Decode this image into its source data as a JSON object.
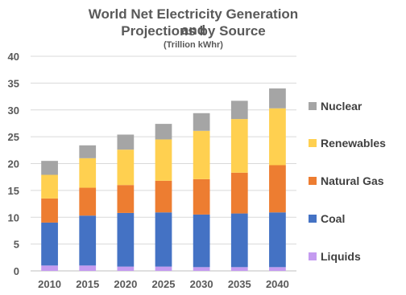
{
  "chart_data": {
    "type": "bar",
    "stacked": true,
    "title": "World Net Electricity Generation and Projections by Source",
    "subtitle": "(Trillion kWhr)",
    "title_lines": [
      "World Net Electricity Generation and",
      "Projections by Source"
    ],
    "categories": [
      "2010",
      "2015",
      "2020",
      "2025",
      "2030",
      "2035",
      "2040"
    ],
    "ylim": [
      0,
      40
    ],
    "yticks": [
      0,
      5,
      10,
      15,
      20,
      25,
      30,
      35,
      40
    ],
    "grid": true,
    "legend_position": "right",
    "series": [
      {
        "name": "Liquids",
        "color": "#C49BF0",
        "values": [
          1.0,
          1.0,
          0.8,
          0.8,
          0.7,
          0.7,
          0.7
        ]
      },
      {
        "name": "Coal",
        "color": "#4472C4",
        "values": [
          8.0,
          9.3,
          10.0,
          10.1,
          9.8,
          10.0,
          10.2
        ]
      },
      {
        "name": "Natural Gas",
        "color": "#ED7D31",
        "values": [
          4.5,
          5.2,
          5.2,
          5.9,
          6.6,
          7.6,
          8.8
        ]
      },
      {
        "name": "Renewables",
        "color": "#FFD050",
        "values": [
          4.4,
          5.5,
          6.6,
          7.7,
          9.0,
          10.0,
          10.6
        ]
      },
      {
        "name": "Nuclear",
        "color": "#A5A5A5",
        "values": [
          2.6,
          2.4,
          2.8,
          2.9,
          3.3,
          3.4,
          3.7
        ]
      }
    ]
  }
}
